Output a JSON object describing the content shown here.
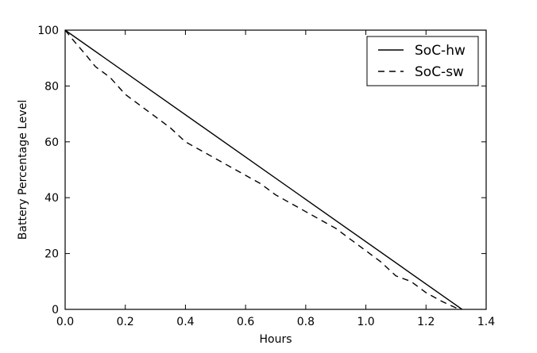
{
  "chart_data": {
    "type": "line",
    "xlabel": "Hours",
    "ylabel": "Battery Percentage Level",
    "xlim": [
      0.0,
      1.4
    ],
    "ylim": [
      0,
      100
    ],
    "xticks": [
      0.0,
      0.2,
      0.4,
      0.6,
      0.8,
      1.0,
      1.2,
      1.4
    ],
    "xtick_labels": [
      "0.0",
      "0.2",
      "0.4",
      "0.6",
      "0.8",
      "1.0",
      "1.2",
      "1.4"
    ],
    "yticks": [
      0,
      20,
      40,
      60,
      80,
      100
    ],
    "ytick_labels": [
      "0",
      "20",
      "40",
      "60",
      "80",
      "100"
    ],
    "grid": false,
    "legend_position": "top-right",
    "series": [
      {
        "name": "SoC-hw",
        "style": "solid",
        "color": "#000000",
        "x": [
          0.0,
          1.32
        ],
        "y": [
          100,
          0
        ]
      },
      {
        "name": "SoC-sw",
        "style": "dashed",
        "color": "#000000",
        "x": [
          0.0,
          0.03,
          0.07,
          0.1,
          0.15,
          0.2,
          0.25,
          0.3,
          0.35,
          0.4,
          0.45,
          0.5,
          0.55,
          0.6,
          0.65,
          0.7,
          0.75,
          0.8,
          0.85,
          0.9,
          0.95,
          1.0,
          1.05,
          1.1,
          1.15,
          1.2,
          1.25,
          1.31
        ],
        "y": [
          100,
          96,
          91,
          87,
          83,
          77,
          73,
          69,
          65,
          60,
          57,
          54,
          51,
          48,
          45,
          41,
          38,
          35,
          32,
          29,
          25,
          21,
          17,
          12,
          10,
          6,
          3,
          0
        ]
      }
    ]
  }
}
